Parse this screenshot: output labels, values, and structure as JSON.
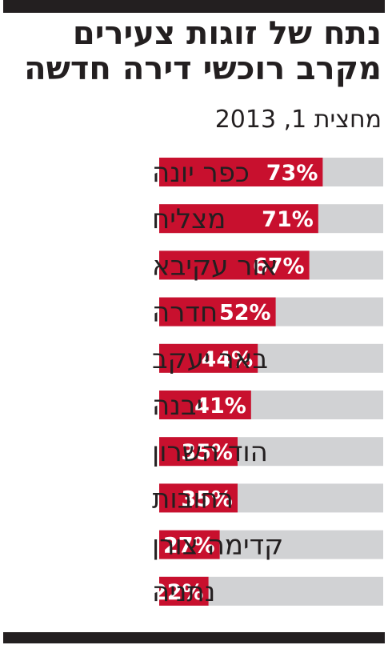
{
  "title": "נתח של זוגות צעירים מקרב רוכשי דירה חדשה",
  "subtitle": "מחצית 1, 2013",
  "colors": {
    "bar": "#c8102e",
    "track": "#d1d2d4",
    "text": "#231f20",
    "rule": "#231f20"
  },
  "chart_data": {
    "type": "bar",
    "orientation": "horizontal",
    "categories": [
      "כפר יונה",
      "מצליח",
      "אור עקיבא",
      "חדרה",
      "באר יעקב",
      "יבנה",
      "הוד השרון",
      "רחובות",
      "קדימה צורן",
      "נתניה"
    ],
    "values": [
      73,
      71,
      67,
      52,
      44,
      41,
      35,
      35,
      27,
      22
    ],
    "value_labels": [
      "73%",
      "71%",
      "67%",
      "52%",
      "44%",
      "41%",
      "35%",
      "35%",
      "27%",
      "22%"
    ],
    "xlim": [
      0,
      100
    ],
    "grid": false,
    "legend": "none"
  }
}
